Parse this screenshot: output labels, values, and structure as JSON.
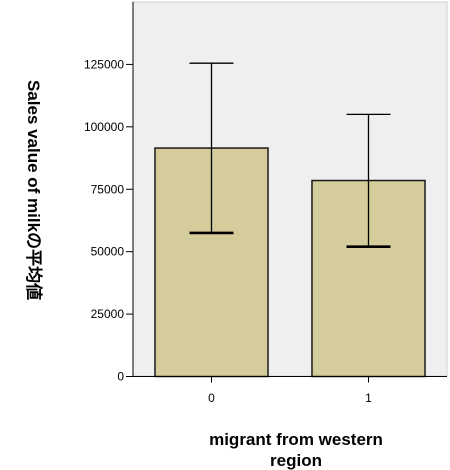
{
  "chart_data": {
    "type": "bar",
    "xlabel_lines": [
      "migrant from western",
      "region"
    ],
    "ylabel": "Sales value of milkの平均値",
    "categories": [
      "0",
      "1"
    ],
    "values": [
      91500,
      78500
    ],
    "error_bars": [
      {
        "low": 57500,
        "high": 125500
      },
      {
        "low": 52000,
        "high": 105000
      }
    ],
    "ylim": [
      0,
      150000
    ],
    "yticks": [
      0,
      25000,
      50000,
      75000,
      100000,
      125000
    ],
    "ytick_labels": [
      "0",
      "25000",
      "50000",
      "75000",
      "100000",
      "125000"
    ],
    "grid": false,
    "colors": {
      "bar_fill": "#d4cc9a",
      "bar_stroke": "#1a1a1a",
      "plot_bg": "#efefef",
      "axis": "#000000"
    }
  }
}
